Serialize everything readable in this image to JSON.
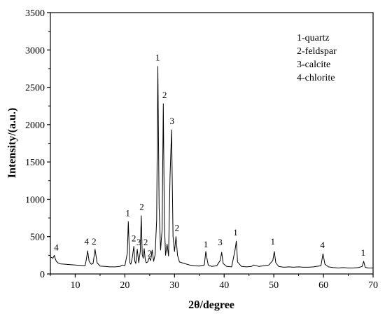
{
  "chart_data": {
    "type": "line",
    "title": "",
    "xlabel": "2θ/degree",
    "ylabel": "Intensity/(a.u.)",
    "xlim": [
      5,
      70
    ],
    "ylim": [
      0,
      3500
    ],
    "x_ticks": [
      10,
      20,
      30,
      40,
      50,
      60,
      70
    ],
    "y_ticks": [
      0,
      500,
      1000,
      1500,
      2000,
      2500,
      3000,
      3500
    ],
    "grid": false,
    "legend_position": "top-right",
    "legend": [
      "1-quartz",
      "2-feldspar",
      "3-calcite",
      "4-chlorite"
    ],
    "series": [
      {
        "color": "#000000",
        "x": [
          5,
          5.5,
          5.8,
          6.0,
          6.2,
          6.5,
          7.0,
          8.0,
          9.0,
          10.0,
          11.0,
          12.0,
          12.2,
          12.5,
          12.8,
          13.2,
          13.6,
          14.0,
          14.4,
          15.0,
          16.0,
          17.0,
          18.0,
          19.0,
          19.5,
          20.0,
          20.5,
          20.7,
          20.85,
          21.0,
          21.2,
          21.5,
          21.8,
          22.0,
          22.2,
          22.5,
          22.8,
          23.1,
          23.3,
          23.5,
          23.7,
          23.9,
          24.1,
          24.3,
          24.6,
          24.9,
          25.2,
          25.5,
          25.8,
          26.1,
          26.4,
          26.65,
          26.9,
          27.2,
          27.5,
          27.75,
          27.95,
          28.2,
          28.5,
          28.8,
          29.1,
          29.4,
          29.7,
          30.0,
          30.3,
          30.6,
          31.0,
          32.0,
          33.0,
          34.0,
          35.0,
          36.0,
          36.3,
          36.5,
          36.8,
          37.5,
          38.5,
          39.2,
          39.5,
          39.8,
          40.5,
          41.5,
          42.2,
          42.45,
          42.7,
          43.5,
          44.5,
          45.5,
          46.0,
          47.0,
          48.0,
          49.0,
          49.8,
          50.1,
          50.4,
          51.0,
          52.0,
          53.0,
          54.0,
          55.0,
          56.0,
          57.0,
          58.0,
          59.5,
          59.9,
          60.3,
          61.0,
          62.0,
          63.0,
          64.0,
          65.0,
          66.0,
          67.0,
          67.8,
          68.1,
          68.4,
          69.0,
          70.0
        ],
        "y": [
          230,
          210,
          250,
          200,
          170,
          150,
          135,
          130,
          125,
          120,
          115,
          110,
          180,
          310,
          170,
          130,
          140,
          330,
          150,
          105,
          100,
          95,
          95,
          100,
          120,
          110,
          280,
          700,
          400,
          150,
          130,
          220,
          370,
          170,
          140,
          330,
          150,
          300,
          780,
          260,
          210,
          340,
          190,
          150,
          160,
          220,
          180,
          320,
          170,
          260,
          720,
          2780,
          900,
          320,
          600,
          2280,
          700,
          250,
          400,
          240,
          1300,
          1930,
          500,
          300,
          500,
          250,
          160,
          140,
          120,
          110,
          105,
          120,
          300,
          220,
          120,
          100,
          110,
          180,
          290,
          140,
          100,
          95,
          320,
          440,
          160,
          100,
          95,
          100,
          120,
          100,
          110,
          120,
          180,
          300,
          150,
          100,
          90,
          95,
          90,
          95,
          90,
          90,
          95,
          110,
          270,
          130,
          95,
          85,
          80,
          85,
          80,
          80,
          85,
          100,
          170,
          90,
          80,
          80
        ]
      }
    ],
    "annotations": [
      {
        "text": "4",
        "x": 6.2,
        "y": 260
      },
      {
        "text": "4",
        "x": 12.3,
        "y": 340
      },
      {
        "text": "2",
        "x": 13.8,
        "y": 340
      },
      {
        "text": "1",
        "x": 20.6,
        "y": 720
      },
      {
        "text": "2",
        "x": 21.8,
        "y": 380
      },
      {
        "text": "3",
        "x": 22.8,
        "y": 330
      },
      {
        "text": "2",
        "x": 23.4,
        "y": 800
      },
      {
        "text": "2",
        "x": 24.2,
        "y": 330
      },
      {
        "text": "2",
        "x": 25.0,
        "y": 180
      },
      {
        "text": "1",
        "x": 26.6,
        "y": 2800
      },
      {
        "text": "2",
        "x": 28.0,
        "y": 2300
      },
      {
        "text": "3",
        "x": 29.5,
        "y": 1950
      },
      {
        "text": "2",
        "x": 30.5,
        "y": 520
      },
      {
        "text": "1",
        "x": 36.3,
        "y": 300
      },
      {
        "text": "3",
        "x": 39.2,
        "y": 330
      },
      {
        "text": "1",
        "x": 42.3,
        "y": 460
      },
      {
        "text": "1",
        "x": 49.8,
        "y": 340
      },
      {
        "text": "4",
        "x": 59.8,
        "y": 290
      },
      {
        "text": "1",
        "x": 68.0,
        "y": 190
      }
    ]
  }
}
